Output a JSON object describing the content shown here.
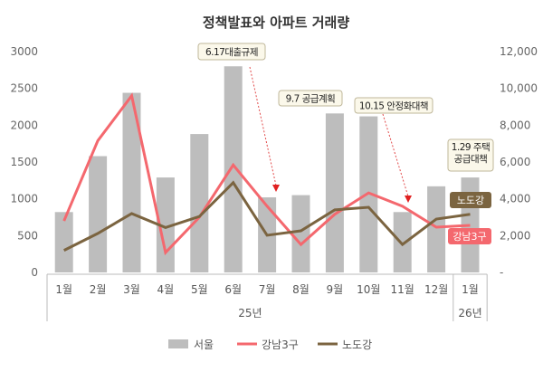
{
  "chart_data": {
    "type": "bar+line",
    "title": "정책발표와 아파트 거래량",
    "categories": [
      "1월",
      "2월",
      "3월",
      "4월",
      "5월",
      "6월",
      "7월",
      "8월",
      "9월",
      "10월",
      "11월",
      "12월",
      "1월"
    ],
    "year_groups": [
      {
        "label": "25년",
        "span": 12
      },
      {
        "label": "26년",
        "span": 1
      }
    ],
    "left_axis": {
      "ticks": [
        "0",
        "500",
        "1000",
        "1500",
        "2000",
        "2500",
        "3000"
      ],
      "range": [
        0,
        3000
      ]
    },
    "right_axis": {
      "ticks": [
        "-",
        "2,000",
        "4,000",
        "6,000",
        "8,000",
        "10,000",
        "12,000"
      ],
      "range": [
        0,
        12000
      ]
    },
    "series": [
      {
        "name": "서울",
        "type": "bar",
        "axis": "right",
        "color": "#bdbdbd",
        "values": [
          3280,
          6320,
          9760,
          5160,
          7520,
          11200,
          4080,
          4200,
          8640,
          8480,
          3280,
          4680,
          5160
        ]
      },
      {
        "name": "강남3구",
        "type": "line",
        "axis": "left",
        "color": "#f4686e",
        "values": [
          700,
          1790,
          2400,
          270,
          750,
          1460,
          900,
          380,
          790,
          1080,
          900,
          615,
          640
        ]
      },
      {
        "name": "노도강",
        "type": "line",
        "axis": "left",
        "color": "#7b6440",
        "values": [
          300,
          530,
          800,
          610,
          760,
          1220,
          505,
          565,
          850,
          885,
          380,
          725,
          790
        ]
      }
    ],
    "annotations": [
      {
        "text": "6.17대출규제",
        "target": "7월",
        "arrow": true
      },
      {
        "text": "9.7 공급계획",
        "target": "9월",
        "arrow": false
      },
      {
        "text": "10.15 안정화대책",
        "target": "11월",
        "arrow": true
      },
      {
        "text": "1.29 주택",
        "text2": "공급대책",
        "target": "1월",
        "arrow": false
      }
    ],
    "series_tags": [
      {
        "text": "노도강",
        "color": "#7b6440"
      },
      {
        "text": "강남3구",
        "color": "#f4686e"
      }
    ],
    "legend_position": "bottom"
  }
}
